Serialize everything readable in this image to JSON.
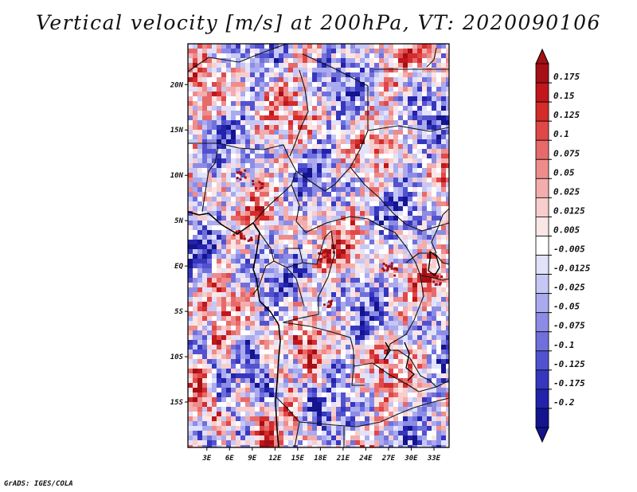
{
  "chart_data": {
    "type": "heatmap",
    "title": "Vertical velocity [m/s] at 200hPa, VT: 2020090106",
    "variable": "Vertical velocity",
    "units": "m/s",
    "level": "200hPa",
    "valid_time": "2020090106",
    "x_ticks": [
      "3E",
      "6E",
      "9E",
      "12E",
      "15E",
      "18E",
      "21E",
      "24E",
      "27E",
      "30E",
      "33E"
    ],
    "y_ticks": [
      "20N",
      "15N",
      "10N",
      "5N",
      "EQ",
      "5S",
      "10S",
      "15S"
    ],
    "lon_range": [
      0.5,
      35
    ],
    "lat_range": [
      -20,
      24.5
    ],
    "colorbar_levels": [
      "0.175",
      "0.15",
      "0.125",
      "0.1",
      "0.075",
      "0.05",
      "0.025",
      "0.0125",
      "0.005",
      "-0.005",
      "-0.0125",
      "-0.025",
      "-0.05",
      "-0.075",
      "-0.1",
      "-0.125",
      "-0.175",
      "-0.2"
    ],
    "colorbar_colors": [
      "#a50f15",
      "#c0161c",
      "#d42b2b",
      "#e04848",
      "#e76a6a",
      "#ee8c8c",
      "#f4adad",
      "#f8cdcd",
      "#fbe6e6",
      "#ffffff",
      "#e2e2fb",
      "#c7c7f5",
      "#aaaaef",
      "#8c8ce6",
      "#7070dc",
      "#5252cf",
      "#3636bf",
      "#2222ab",
      "#14148f"
    ]
  },
  "credit": "GrADS: IGES/COLA"
}
